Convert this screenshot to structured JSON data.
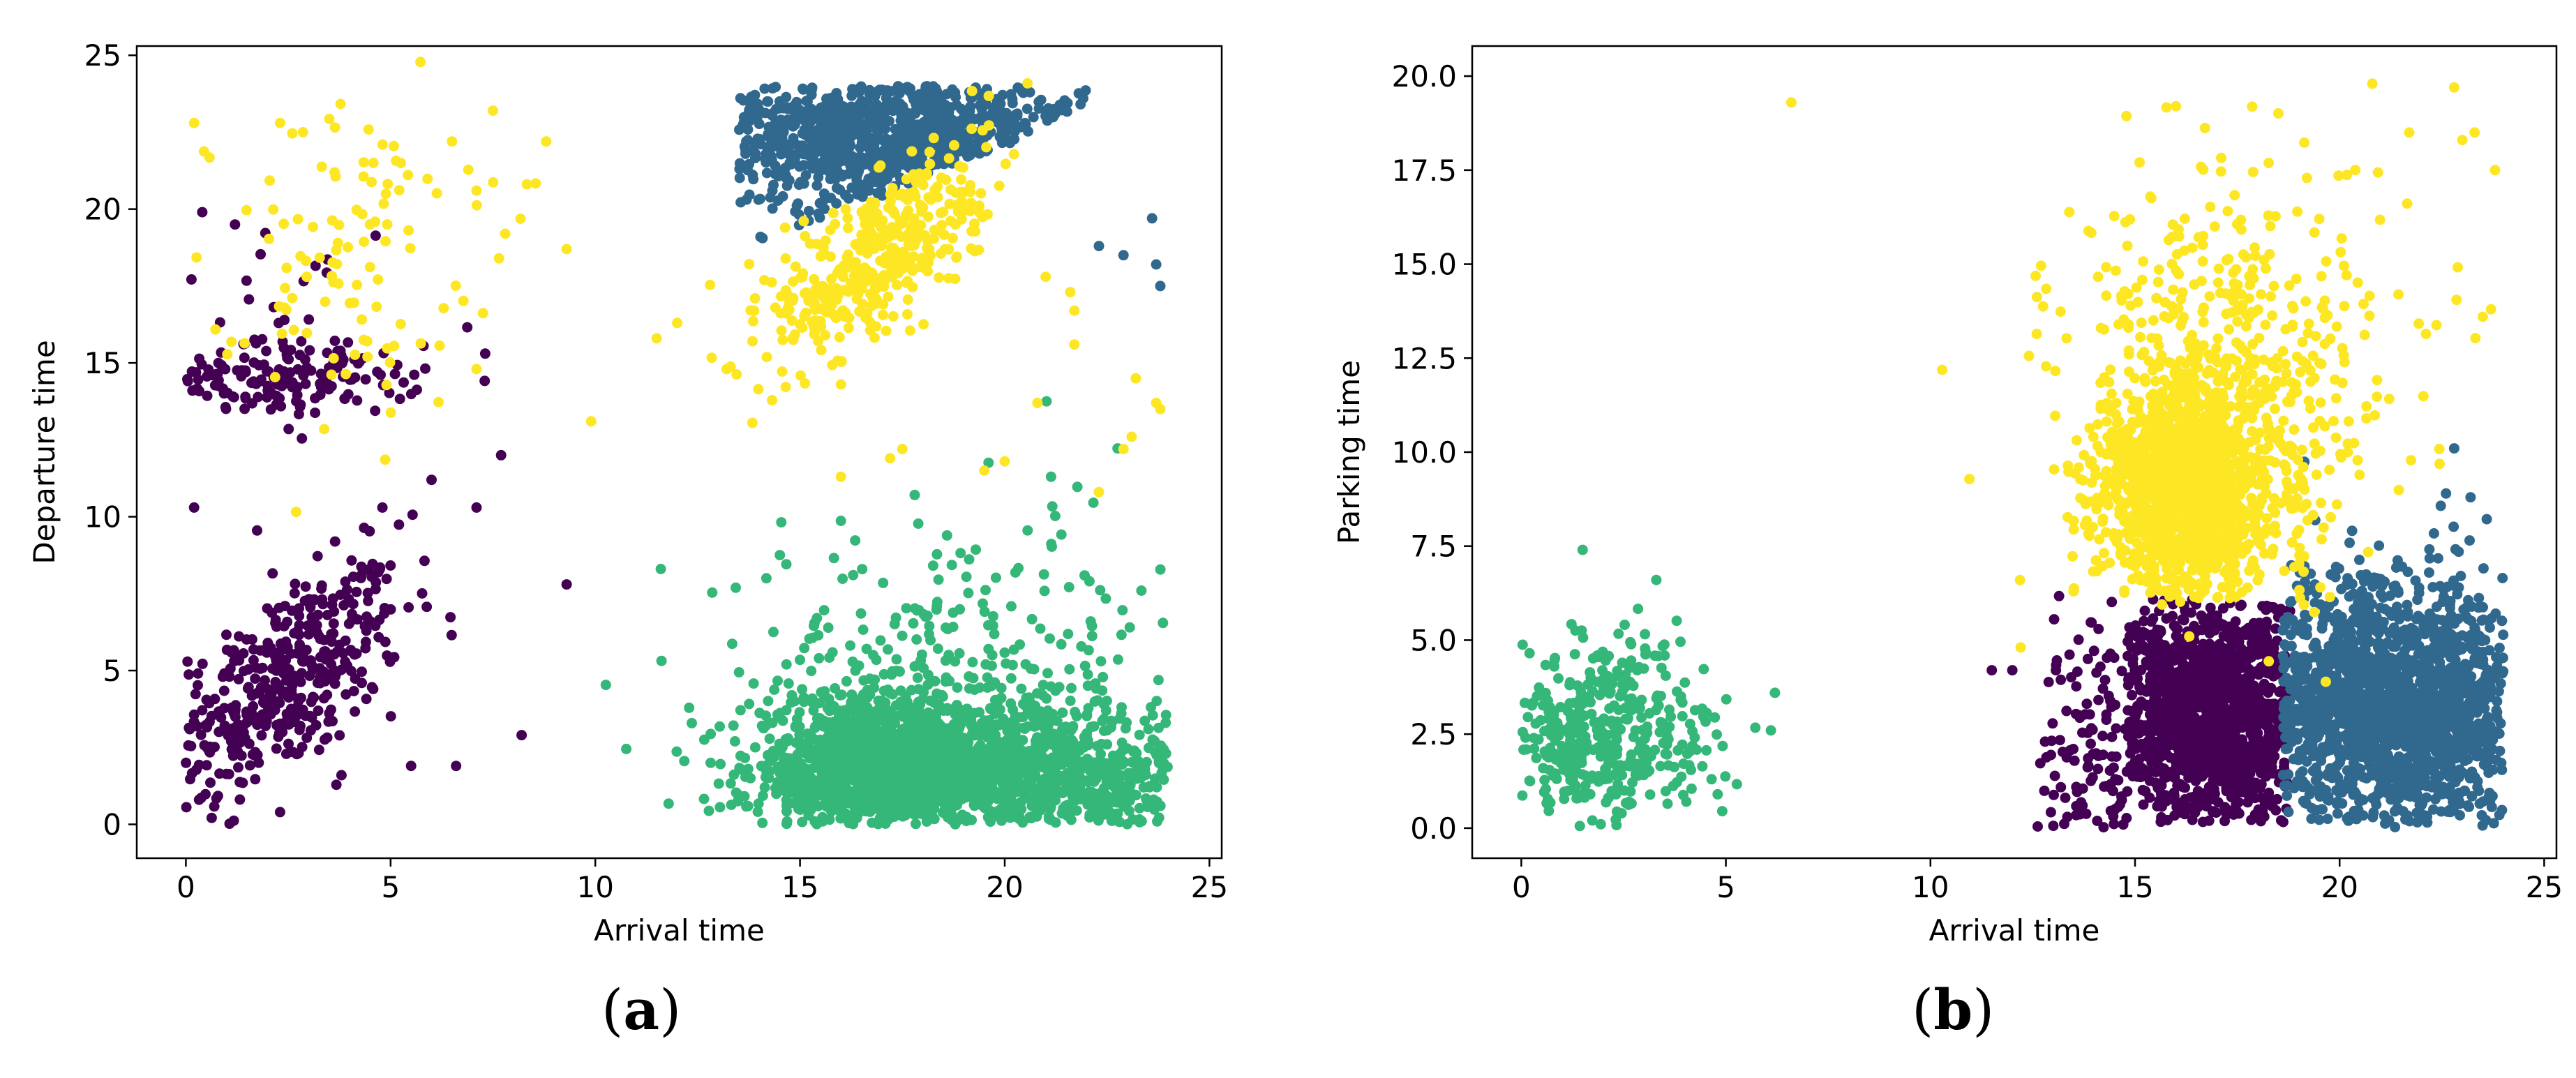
{
  "panels": [
    {
      "label": "(a)",
      "label_letter": "a"
    },
    {
      "label": "(b)",
      "label_letter": "b"
    }
  ],
  "colors": {
    "purple": "#440154",
    "blue": "#31688e",
    "green": "#35b779",
    "yellow": "#fde725"
  },
  "chart_data": [
    {
      "type": "scatter",
      "title": "",
      "xlabel": "Arrival time",
      "ylabel": "Departure time",
      "xlim": [
        -1.2,
        25.3
      ],
      "ylim": [
        -1.1,
        25.3
      ],
      "xticks": [
        0,
        5,
        10,
        15,
        20,
        25
      ],
      "yticks": [
        0,
        5,
        10,
        15,
        20,
        25
      ],
      "grid": false,
      "legend": "none",
      "series": [
        {
          "color": "#440154",
          "clusters": [
            {
              "center": [
                2.3,
                4.5
              ],
              "spread": [
                1.5,
                1.5
              ],
              "count": 420,
              "trend": 0.8
            },
            {
              "center": [
                2.5,
                14.5
              ],
              "spread": [
                1.6,
                0.6
              ],
              "count": 150
            },
            {
              "center": [
                2.5,
                16.5
              ],
              "spread": [
                1.5,
                1.8
              ],
              "count": 30
            }
          ],
          "points": [
            [
              0.4,
              19.9
            ],
            [
              1.2,
              19.5
            ],
            [
              7.7,
              12.0
            ],
            [
              7.1,
              10.3
            ],
            [
              9.3,
              7.8
            ],
            [
              8.2,
              2.9
            ],
            [
              6.6,
              1.9
            ],
            [
              5.5,
              1.9
            ],
            [
              6.0,
              11.2
            ],
            [
              4.8,
              10.3
            ],
            [
              3.8,
              1.6
            ],
            [
              2.3,
              0.4
            ],
            [
              0.2,
              10.3
            ]
          ]
        },
        {
          "color": "#31688e",
          "clusters": [
            {
              "center": [
                17.0,
                22.5
              ],
              "spread": [
                2.5,
                1.3
              ],
              "count": 900,
              "region": "upper-triangle"
            }
          ],
          "points": [
            [
              23.6,
              19.7
            ],
            [
              23.7,
              18.2
            ],
            [
              23.8,
              17.5
            ],
            [
              22.3,
              18.8
            ],
            [
              22.9,
              18.5
            ],
            [
              14.2,
              23.5
            ],
            [
              13.7,
              22.8
            ]
          ]
        },
        {
          "color": "#35b779",
          "clusters": [
            {
              "center": [
                16.8,
                1.8
              ],
              "spread": [
                1.5,
                1.2
              ],
              "count": 1200
            },
            {
              "center": [
                20.5,
                1.5
              ],
              "spread": [
                2.2,
                1.2
              ],
              "count": 900
            },
            {
              "center": [
                19.0,
                4.5
              ],
              "spread": [
                2.8,
                2.8
              ],
              "count": 300
            }
          ],
          "points": [
            [
              11.6,
              8.3
            ]
          ]
        },
        {
          "color": "#fde725",
          "clusters": [
            {
              "center": [
                17.0,
                18.5
              ],
              "spread": [
                1.3,
                1.3
              ],
              "count": 420,
              "trend": 0.9
            },
            {
              "center": [
                3.8,
                19.0
              ],
              "spread": [
                1.6,
                2.5
              ],
              "count": 110
            }
          ],
          "points": [
            [
              9.9,
              13.1
            ],
            [
              11.5,
              15.8
            ],
            [
              12.0,
              16.3
            ],
            [
              7.8,
              19.2
            ],
            [
              8.8,
              22.2
            ],
            [
              9.3,
              18.7
            ],
            [
              7.5,
              23.2
            ],
            [
              6.5,
              22.2
            ],
            [
              7.1,
              20.6
            ],
            [
              7.1,
              14.8
            ],
            [
              0.2,
              22.8
            ],
            [
              2.3,
              22.8
            ],
            [
              16.0,
              14.3
            ],
            [
              17.5,
              12.2
            ],
            [
              17.2,
              11.9
            ],
            [
              16.0,
              11.3
            ],
            [
              19.5,
              11.5
            ],
            [
              20.0,
              11.8
            ],
            [
              20.8,
              13.7
            ],
            [
              23.2,
              14.5
            ],
            [
              23.7,
              13.7
            ],
            [
              23.8,
              13.5
            ],
            [
              23.1,
              12.6
            ],
            [
              22.3,
              10.8
            ],
            [
              22.9,
              12.2
            ],
            [
              21.6,
              17.3
            ],
            [
              21.7,
              16.7
            ],
            [
              21.0,
              17.8
            ],
            [
              21.7,
              15.6
            ]
          ]
        }
      ]
    },
    {
      "type": "scatter",
      "title": "",
      "xlabel": "Arrival time",
      "ylabel": "Parking time",
      "xlim": [
        -1.2,
        25.3
      ],
      "ylim": [
        -0.8,
        20.8
      ],
      "xticks": [
        0,
        5,
        10,
        15,
        20,
        25
      ],
      "yticks": [
        "0.0",
        "2.5",
        "5.0",
        "7.5",
        "10.0",
        "12.5",
        "15.0",
        "17.5",
        "20.0"
      ],
      "grid": false,
      "legend": "none",
      "series": [
        {
          "color": "#440154",
          "clusters": [
            {
              "center": [
                16.8,
                3.0
              ],
              "spread": [
                1.2,
                1.6
              ],
              "count": 1300,
              "region": "box 14.8-18.8 x 0.2-6.1"
            },
            {
              "center": [
                14.0,
                2.0
              ],
              "spread": [
                0.6,
                1.8
              ],
              "count": 120
            }
          ],
          "points": [
            [
              11.5,
              4.2
            ],
            [
              12.0,
              4.2
            ],
            [
              12.8,
              2.3
            ]
          ]
        },
        {
          "color": "#31688e",
          "clusters": [
            {
              "center": [
                21.0,
                3.2
              ],
              "spread": [
                1.6,
                1.7
              ],
              "count": 1400,
              "region": "x > 18.5"
            },
            {
              "center": [
                22.8,
                3.0
              ],
              "spread": [
                1.0,
                1.6
              ],
              "count": 300
            }
          ],
          "points": [
            [
              22.8,
              10.1
            ],
            [
              23.2,
              8.8
            ],
            [
              22.6,
              8.9
            ]
          ]
        },
        {
          "color": "#35b779",
          "clusters": [
            {
              "center": [
                2.0,
                2.4
              ],
              "spread": [
                1.3,
                1.3
              ],
              "count": 420
            }
          ],
          "points": [
            [
              1.5,
              7.4
            ],
            [
              3.3,
              6.6
            ],
            [
              6.2,
              3.6
            ],
            [
              6.1,
              2.6
            ],
            [
              4.8,
              0.9
            ]
          ]
        },
        {
          "color": "#fde725",
          "clusters": [
            {
              "center": [
                16.3,
                9.0
              ],
              "spread": [
                1.1,
                1.5
              ],
              "count": 1400,
              "region": "y > 6.1"
            },
            {
              "center": [
                17.3,
                12.0
              ],
              "spread": [
                2.0,
                2.6
              ],
              "count": 500
            }
          ],
          "points": [
            [
              6.6,
              19.3
            ],
            [
              16.0,
              19.2
            ],
            [
              20.8,
              19.8
            ],
            [
              22.8,
              19.7
            ],
            [
              23.3,
              18.5
            ],
            [
              23.8,
              17.5
            ],
            [
              23.7,
              13.8
            ],
            [
              23.5,
              13.6
            ],
            [
              21.7,
              18.5
            ],
            [
              23.0,
              18.3
            ]
          ]
        }
      ]
    }
  ]
}
